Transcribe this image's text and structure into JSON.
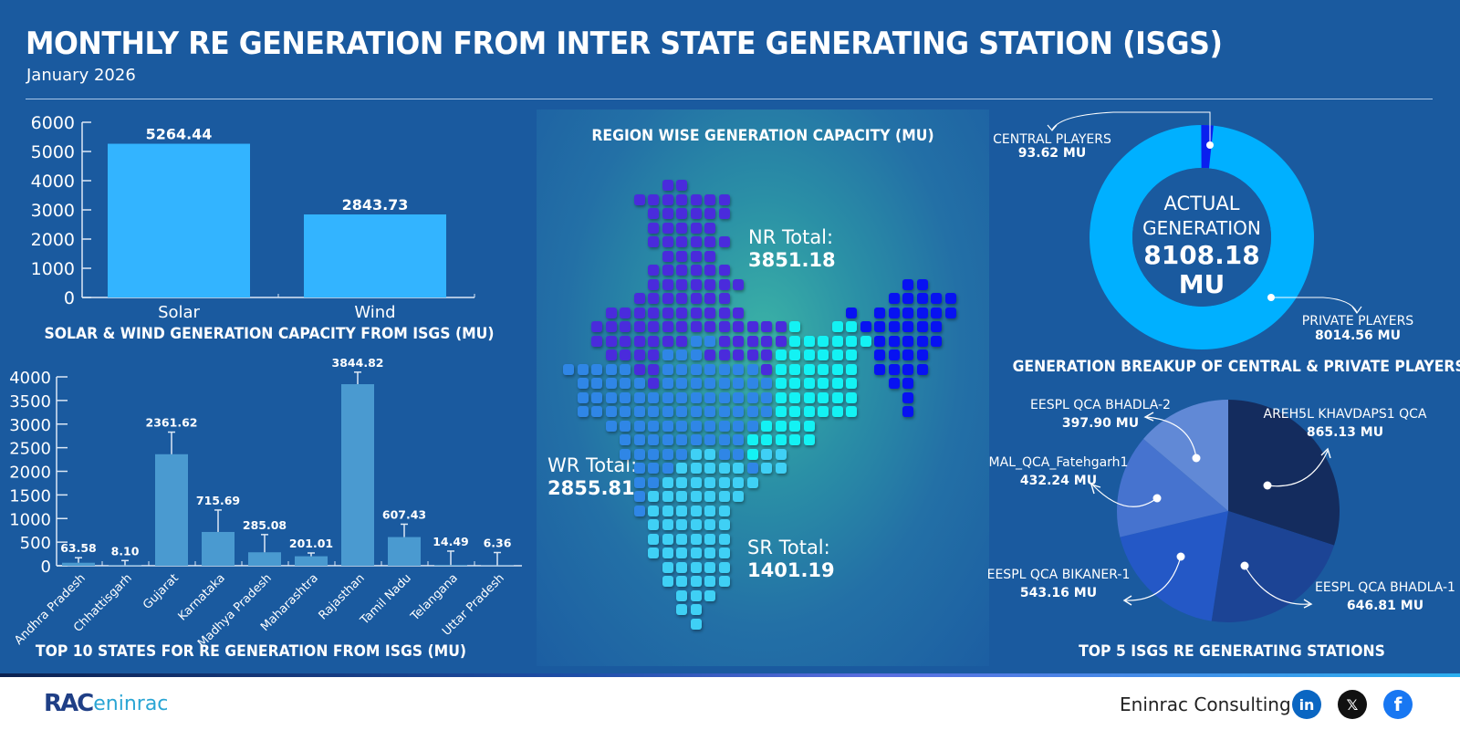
{
  "header": {
    "title": "MONTHLY RE GENERATION FROM INTER STATE GENERATING STATION (ISGS)",
    "subtitle": "January 2026"
  },
  "colors": {
    "background": "#1a5a9f",
    "bar_solar_wind": "#33b4ff",
    "bar_states": "#4a9ad0",
    "donut_private": "#00b0ff",
    "donut_central": "#0a1fee",
    "nr": "#4a2bdc",
    "wr": "#2f86e6",
    "sr": "#3fd0f5",
    "er": "#13f2f4",
    "ner": "#0712f2"
  },
  "chart_data": [
    {
      "id": "solar_wind",
      "type": "bar",
      "title": "SOLAR & WIND GENERATION CAPACITY FROM ISGS (MU)",
      "categories": [
        "Solar",
        "Wind"
      ],
      "values": [
        5264.44,
        2843.73
      ],
      "value_labels": [
        "5264.44",
        "2843.73"
      ],
      "yticks": [
        "0",
        "1000",
        "2000",
        "3000",
        "4000",
        "5000",
        "6000"
      ],
      "ylim": [
        0,
        6000
      ],
      "grid": false
    },
    {
      "id": "top10_states",
      "type": "bar",
      "title": "TOP 10 STATES FOR RE GENERATION FROM ISGS (MU)",
      "categories": [
        "Andhra Pradesh",
        "Chhattisgarh",
        "Gujarat",
        "Karnataka",
        "Madhya Pradesh",
        "Maharashtra",
        "Rajasthan",
        "Tamil Nadu",
        "Telangana",
        "Uttar Pradesh"
      ],
      "values": [
        63.58,
        8.1,
        2361.62,
        715.69,
        285.08,
        201.01,
        3844.82,
        607.43,
        14.49,
        6.36
      ],
      "value_labels": [
        "63.58",
        "8.10",
        "2361.62",
        "715.69",
        "285.08",
        "201.01",
        "3844.82",
        "607.43",
        "14.49",
        "6.36"
      ],
      "error_bar_tops": [
        170,
        110,
        2830,
        1180,
        660,
        270,
        4100,
        880,
        310,
        280
      ],
      "yticks": [
        "0",
        "500",
        "1000",
        "1500",
        "2000",
        "2500",
        "3000",
        "3500",
        "4000"
      ],
      "ylim": [
        0,
        4000
      ],
      "grid": false
    },
    {
      "id": "region_map",
      "type": "heatmap",
      "title": "REGION WISE GENERATION CAPACITY (MU)",
      "regions": [
        {
          "name": "NR",
          "label": "NR Total:",
          "value": "3851.18"
        },
        {
          "name": "WR",
          "label": "WR Total:",
          "value": "2855.81"
        },
        {
          "name": "SR",
          "label": "SR Total:",
          "value": "1401.19"
        }
      ]
    },
    {
      "id": "central_private",
      "type": "pie",
      "title": "GENERATION BREAKUP OF CENTRAL & PRIVATE PLAYERS",
      "center_label": [
        "ACTUAL",
        "GENERATION",
        "8108.18",
        "MU"
      ],
      "total": 8108.18,
      "slices": [
        {
          "name": "CENTRAL PLAYERS",
          "value": 93.62,
          "label": "93.62 MU"
        },
        {
          "name": "PRIVATE PLAYERS",
          "value": 8014.56,
          "label": "8014.56 MU"
        }
      ]
    },
    {
      "id": "top5_stations",
      "type": "pie",
      "title": "TOP 5 ISGS RE GENERATING STATIONS",
      "slices": [
        {
          "name": "AREH5L KHAVDAPS1 QCA",
          "value": 865.13,
          "label": "865.13 MU",
          "color": "#142c5e"
        },
        {
          "name": "EESPL QCA BHADLA-1",
          "value": 646.81,
          "label": "646.81 MU",
          "color": "#1c4495"
        },
        {
          "name": "EESPL QCA BIKANER-1",
          "value": 543.16,
          "label": "543.16 MU",
          "color": "#2458c6"
        },
        {
          "name": "MAL_QCA_Fatehgarh1",
          "value": 432.24,
          "label": "432.24 MU",
          "color": "#4673cf"
        },
        {
          "name": "EESPL QCA BHADLA-2",
          "value": 397.9,
          "label": "397.90 MU",
          "color": "#6189d6"
        }
      ]
    }
  ],
  "map_grid": {
    "origin_x": 29,
    "origin_y": 77,
    "step": 15.5,
    "rows": [
      ".......NN",
      ".....NNNNNNN",
      "......NNNNNN",
      "......NNNNN",
      "......NNNNNN",
      ".......NNNN",
      "......NNNNNN",
      "......NNNNNNN...........XX",
      ".....NNNNNNN...........XXXXX",
      "...NNNNNNNNNN.......X.XXXXXX",
      "..NNNNNNNNNNNNNNE..EEXXXXXX",
      "..NNNNNNNWWNNNNNEEEEEEXXXXX",
      "...NNNNWWWNNNNNEEEEEE.XXXX",
      "WWWWWNNWWWWWWWNEEEEEE.XXXX",
      ".WWWWWNWWWWWWWWEEEEEE..XX",
      ".WWWWWWWWWWWWWWEEEEEE...X",
      ".WWWWWWWWWWWWWWEEEEEE...X",
      "...WWWWWWWWWWWEEEE",
      "....WWWWWWWWWEEEEE",
      "....WWWWWSSWWESS",
      ".....WWWSSSSSWSS",
      ".....WWSSSSSSS",
      ".....WSSSSSSS",
      ".....WSSSSSS",
      "......SSSSSS",
      "......SSSSSS",
      "......SSSSSS",
      ".......SSSSS",
      ".......SSSSS",
      "........SSS",
      "........SS",
      ".........S"
    ]
  },
  "footer": {
    "logo_mark": "RAC",
    "logo_text": "eninrac",
    "company": "Eninrac Consulting",
    "social": [
      {
        "name": "linkedin",
        "glyph": "in",
        "color": "#0a66c2"
      },
      {
        "name": "x",
        "glyph": "𝕏",
        "color": "#111111"
      },
      {
        "name": "facebook",
        "glyph": "f",
        "color": "#1877f2"
      }
    ]
  }
}
